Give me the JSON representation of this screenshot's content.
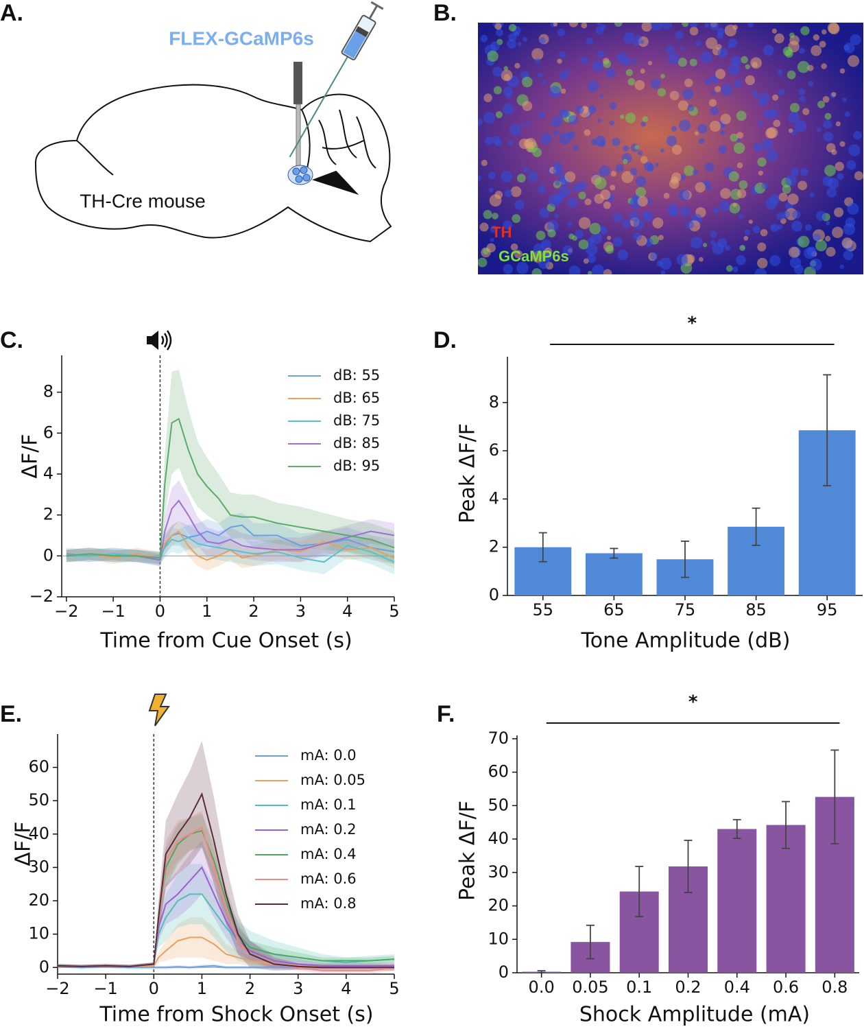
{
  "panel_labels": [
    "A.",
    "B.",
    "C.",
    "D.",
    "E.",
    "F."
  ],
  "diagram": {
    "virus": "FLEX-GCaMP6s",
    "animal": "TH-Cre mouse"
  },
  "image": {
    "stain_1": "TH",
    "stain_2": "GCaMP6s"
  },
  "chart_data": [
    {
      "type": "line",
      "xlabel": "Time from Cue Onset (s)",
      "ylabel": "ΔF/F",
      "legend": "upper right",
      "xlim": [
        -2.1,
        5
      ],
      "ylim": [
        -2,
        9.8
      ],
      "xticks": [
        {
          "value": -2,
          "label": "−2"
        },
        {
          "value": -1,
          "label": "−1"
        },
        0,
        1,
        2,
        3,
        4,
        5
      ],
      "yticks": [
        {
          "value": -2,
          "label": "−2"
        },
        0,
        2,
        4,
        6,
        8
      ],
      "x": [
        -2,
        -1.5,
        -1,
        -0.5,
        0,
        0.1,
        0.25,
        0.4,
        0.6,
        0.8,
        1,
        1.25,
        1.5,
        1.75,
        2,
        2.5,
        3,
        3.5,
        4,
        4.5,
        5
      ],
      "series": [
        {
          "name": "dB: 55",
          "color": "#6a9fe0",
          "values": [
            0.1,
            0,
            0.1,
            0,
            -0.2,
            0.5,
            1.0,
            1.1,
            0.9,
            1.0,
            1.2,
            1.0,
            1.4,
            1.5,
            1.0,
            1.0,
            0.5,
            0.6,
            0.8,
            0.4,
            0.2
          ],
          "error": [
            0.3,
            0.3,
            0.3,
            0.3,
            0.3,
            0.5,
            0.5,
            0.6,
            0.6,
            0.6,
            0.6,
            0.6,
            0.6,
            0.6,
            0.6,
            0.6,
            0.6,
            0.6,
            0.6,
            0.6,
            0.6
          ]
        },
        {
          "name": "dB: 65",
          "color": "#e8a060",
          "values": [
            0,
            0.1,
            -0.1,
            0.1,
            -0.1,
            0.6,
            1.0,
            1.2,
            0.5,
            0,
            -0.2,
            0,
            0.3,
            -0.1,
            0,
            0.3,
            0.2,
            0.7,
            0.3,
            0.4,
            -0.1
          ],
          "error": [
            0.3,
            0.3,
            0.3,
            0.3,
            0.3,
            0.5,
            0.5,
            0.5,
            0.5,
            0.5,
            0.5,
            0.5,
            0.5,
            0.5,
            0.5,
            0.5,
            0.5,
            0.5,
            0.5,
            0.5,
            0.5
          ]
        },
        {
          "name": "dB: 75",
          "color": "#5bc0c8",
          "values": [
            0,
            0,
            0.1,
            0,
            -0.1,
            0.4,
            0.8,
            0.7,
            0.9,
            0.6,
            0.5,
            0.4,
            0.3,
            0.2,
            0.1,
            0.2,
            -0.1,
            -0.3,
            0.5,
            0.2,
            -0.3
          ],
          "error": [
            0.3,
            0.3,
            0.3,
            0.3,
            0.3,
            0.5,
            0.6,
            0.6,
            0.6,
            0.6,
            0.6,
            0.6,
            0.6,
            0.6,
            0.6,
            0.6,
            0.6,
            0.6,
            0.6,
            0.6,
            0.6
          ]
        },
        {
          "name": "dB: 85",
          "color": "#a070d0",
          "values": [
            0,
            0.1,
            0,
            0,
            -0.2,
            1.2,
            2.3,
            2.7,
            2.0,
            1.2,
            0.7,
            0.6,
            0.8,
            0.5,
            0.4,
            0.3,
            0.3,
            0.6,
            0.9,
            1.2,
            1.0
          ],
          "error": [
            0.3,
            0.3,
            0.3,
            0.3,
            0.3,
            0.8,
            1.0,
            1.0,
            0.9,
            0.7,
            0.7,
            0.6,
            0.6,
            0.6,
            0.6,
            0.6,
            0.6,
            0.6,
            0.6,
            0.6,
            0.6
          ]
        },
        {
          "name": "dB: 95",
          "color": "#5aaa6a",
          "values": [
            0,
            0.1,
            0,
            0,
            -0.1,
            3.5,
            6.5,
            6.7,
            5.2,
            4.0,
            3.4,
            2.8,
            2.0,
            1.9,
            1.9,
            1.6,
            1.4,
            1.2,
            1.0,
            0.8,
            0.4
          ],
          "error": [
            0.3,
            0.3,
            0.3,
            0.3,
            0.3,
            1.5,
            2.5,
            2.4,
            2.0,
            1.6,
            1.4,
            1.2,
            1.1,
            1.1,
            1.1,
            1.0,
            1.0,
            0.9,
            0.8,
            0.8,
            0.8
          ]
        }
      ]
    },
    {
      "type": "bar",
      "xlabel": "Tone Amplitude (dB)",
      "ylabel": "Peak ΔF/F",
      "annotation": "*",
      "color": "#5089d8",
      "ylim": [
        0,
        9.9
      ],
      "yticks": [
        0,
        2,
        4,
        6,
        8
      ],
      "categories": [
        "55",
        "65",
        "75",
        "85",
        "95"
      ],
      "values": [
        2.0,
        1.75,
        1.5,
        2.85,
        6.85
      ],
      "error": [
        0.6,
        0.2,
        0.75,
        0.77,
        2.3
      ]
    },
    {
      "type": "line",
      "xlabel": "Time from Shock Onset (s)",
      "ylabel": "ΔF/F",
      "legend": "upper right",
      "xlim": [
        -2,
        5
      ],
      "ylim": [
        -2,
        70
      ],
      "xticks": [
        {
          "value": -2,
          "label": "−2"
        },
        {
          "value": -1,
          "label": "−1"
        },
        0,
        1,
        2,
        3,
        4,
        5
      ],
      "yticks": [
        0,
        10,
        20,
        30,
        40,
        50,
        60
      ],
      "x": [
        -2,
        -1.5,
        -1,
        -0.5,
        0,
        0.1,
        0.25,
        0.5,
        0.75,
        1,
        1.25,
        1.5,
        1.75,
        2,
        2.5,
        3,
        3.5,
        4,
        4.5,
        5
      ],
      "series": [
        {
          "name": "mA: 0.0",
          "color": "#6a9fe0",
          "values": [
            0.5,
            0,
            0.3,
            0,
            0,
            0,
            0,
            0.2,
            0,
            0.3,
            0.5,
            0,
            0,
            0,
            0,
            0,
            0,
            0,
            0,
            0
          ],
          "error": [
            0.5,
            0.5,
            0.5,
            0.5,
            0.5,
            0.5,
            0.5,
            0.5,
            0.5,
            0.5,
            0.5,
            0.5,
            0.5,
            0.5,
            0.5,
            0.5,
            0.5,
            0.5,
            0.5,
            0.5
          ]
        },
        {
          "name": "mA: 0.05",
          "color": "#e8a060",
          "values": [
            0.5,
            0.3,
            0.5,
            0.3,
            0.5,
            3,
            5,
            8,
            9,
            9,
            7,
            4,
            3,
            2,
            1,
            0.5,
            0.5,
            0.3,
            0.3,
            0.3
          ],
          "error": [
            0.5,
            0.5,
            0.5,
            0.5,
            0.5,
            1.5,
            3,
            5,
            6,
            6,
            5,
            3,
            2,
            1.5,
            1,
            0.5,
            0.5,
            0.5,
            0.5,
            0.5
          ]
        },
        {
          "name": "mA: 0.1",
          "color": "#4fbfb8",
          "values": [
            0.5,
            0.3,
            0.5,
            0.3,
            1,
            10,
            15,
            20,
            22,
            22,
            17,
            12,
            8,
            6,
            4,
            3,
            2,
            1.5,
            2,
            2.5
          ],
          "error": [
            0.5,
            0.5,
            0.5,
            0.5,
            0.5,
            4,
            7,
            8,
            9,
            9,
            8,
            7,
            6,
            5,
            4,
            3,
            2,
            1.5,
            1.5,
            1.5
          ]
        },
        {
          "name": "mA: 0.2",
          "color": "#9a5fd0",
          "values": [
            0.5,
            0.3,
            0.5,
            0.3,
            1,
            12,
            19,
            22,
            26,
            30,
            22,
            14,
            8,
            5,
            2,
            1,
            0.5,
            0.5,
            0.5,
            0.5
          ],
          "error": [
            0.5,
            0.5,
            0.5,
            0.5,
            0.5,
            4,
            6,
            7,
            8,
            8,
            7,
            5,
            4,
            3,
            2,
            1.5,
            1,
            1,
            1,
            1
          ]
        },
        {
          "name": "mA: 0.4",
          "color": "#4ea860",
          "values": [
            0.5,
            0.3,
            0.5,
            0.3,
            1,
            15,
            30,
            37,
            40,
            41,
            32,
            20,
            10,
            6,
            4,
            3,
            2,
            2,
            2,
            2.5
          ],
          "error": [
            0.5,
            0.5,
            0.5,
            0.5,
            0.5,
            4,
            6,
            6,
            5,
            5,
            5,
            4,
            3,
            2,
            2,
            1.5,
            1,
            1,
            1,
            1
          ]
        },
        {
          "name": "mA: 0.6",
          "color": "#f08a8a",
          "values": [
            0.5,
            0.3,
            0.5,
            0.3,
            1,
            14,
            32,
            38,
            40,
            42,
            30,
            18,
            8,
            4,
            1,
            0,
            -1,
            -1,
            -1,
            0
          ],
          "error": [
            0.5,
            0.5,
            0.5,
            0.5,
            0.5,
            4,
            6,
            6,
            5,
            5,
            5,
            4,
            3,
            2,
            1.5,
            1,
            1,
            1,
            1,
            1
          ]
        },
        {
          "name": "mA: 0.8",
          "color": "#5a2a3a",
          "values": [
            0.5,
            0.3,
            0.5,
            0.3,
            1,
            15,
            34,
            40,
            45,
            52,
            38,
            22,
            10,
            4,
            1,
            0.3,
            0,
            0,
            0,
            0
          ],
          "error": [
            0.5,
            0.5,
            0.5,
            0.5,
            0.5,
            5,
            10,
            12,
            14,
            16,
            13,
            9,
            6,
            4,
            2,
            1,
            1,
            1,
            1,
            1
          ]
        }
      ]
    },
    {
      "type": "bar",
      "xlabel": "Shock Amplitude (mA)",
      "ylabel": "Peak ΔF/F",
      "annotation": "*",
      "color": "#8955a0",
      "ylim": [
        0,
        71
      ],
      "yticks": [
        0,
        10,
        20,
        30,
        40,
        50,
        60,
        70
      ],
      "categories": [
        "0.0",
        "0.05",
        "0.1",
        "0.2",
        "0.4",
        "0.6",
        "0.8"
      ],
      "values": [
        0.3,
        9.2,
        24.3,
        31.8,
        43,
        44.2,
        52.6
      ],
      "error": [
        0.3,
        5,
        7.5,
        7.8,
        2.8,
        7,
        14
      ]
    }
  ]
}
